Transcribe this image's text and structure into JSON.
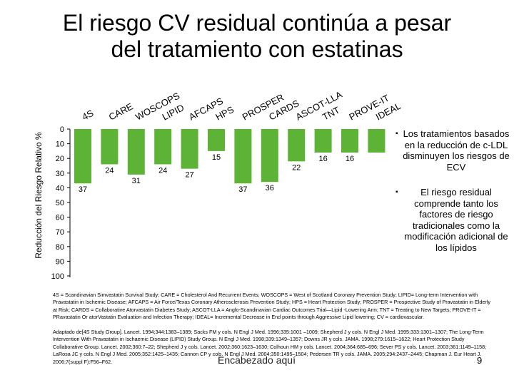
{
  "slide": {
    "title_line1": "El riesgo CV residual continúa a pesar",
    "title_line2": "del tratamiento con estatinas",
    "footer": "Encabezado aquí",
    "page_number": "9"
  },
  "bullets": [
    "Los tratamientos basados en la reducción de c-LDL disminuyen los riesgos de ECV",
    "El riesgo residual comprende tanto los factores de riesgo tradicionales como la modificación adicional de los lípidos"
  ],
  "bullet_symbol": "▪",
  "notes": "4S = Scandinavian Simvastatin Survival Study; CARE = Cholesterol And Recurrent Events; WOSCOPS = West of Scotland Coronary Prevention Study; LIPID= Long-term Intervention with Pravastatin in Ischemic Disease; AFCAPS = Air Force/Texas Coronary Atherosclerosis Prevention Study; HPS = Heart Protection Study; PROSPER = Prospective Study of Pravastatin in Elderly at Risk; CARDS = Collaborative Atorvastatin Diabetes Study; ASCOT-LLA = Anglo-Scandinavian Cardiac Outcomes Trial—Lipid -Lowering Arm; TNT = Treating to New Targets; PROVE-IT = PRavastatin Or atorVastatin Evaluation and Infection Therapy; IDEAL= Incremental Decrease in End points through Aggressive Lipid lowering; CV = cardiovascular.",
  "references": "Adaptado de[4S Study Group]. Lancet. 1994;344:1383–1389; Sacks FM y cols. N Engl J Med. 1996;335:1001 –1009; Shepherd J y cols. N Engl J Med. 1995;333:1301–1307; The Long-Term Intervention With Pravastatin in Ischaemic Disease (LIPID) Study Group. N Engl J Med. 1998;339:1349–1357; Downs JR y cols. JAMA. 1998;279:1615–1622; Heart Protection Study Collaborative Group. Lancet. 2002;360:7–22; Shepherd J y cols. Lancet. 2002;360:1623–1630; Colhoun HM y cols. Lancet. 2004;364:685–696; Sever PS y cols. Lancet. 2003;361:1149–1158; LaRosa JC y cols. N Engl J Med. 2005;352:1425–1435; Cannon CP y cols. N Engl J Med. 2004;350:1495–1504; Pedersen TR y cols. JAMA. 2005;294:2437–2445; Chapman J. Eur Heart J. 2006;7(suppl F):F56–F62.",
  "chart_data": {
    "type": "bar",
    "ylabel": "Reducción del Riesgo Relativo %",
    "ylim": [
      0,
      100
    ],
    "y_inverted": true,
    "yticks": [
      "0",
      "10",
      "20",
      "30",
      "40",
      "50",
      "60",
      "70",
      "80",
      "90",
      "100"
    ],
    "categories": [
      "4S",
      "CARE",
      "WOSCOPS",
      "LIPID",
      "AFCAPS",
      "HPS",
      "PROSPER",
      "CARDS",
      "ASCOT-LLA",
      "TNT",
      "PROVE-IT",
      "IDEAL"
    ],
    "values": [
      37,
      24,
      31,
      24,
      27,
      15,
      37,
      36,
      22,
      16,
      16,
      16
    ],
    "value_labels": [
      "37",
      "24",
      "31",
      "24",
      "27",
      "15",
      "37",
      "36",
      "22",
      "16",
      "16",
      ""
    ],
    "bar_color": "#5cb335",
    "grid": false,
    "legend": "none"
  }
}
